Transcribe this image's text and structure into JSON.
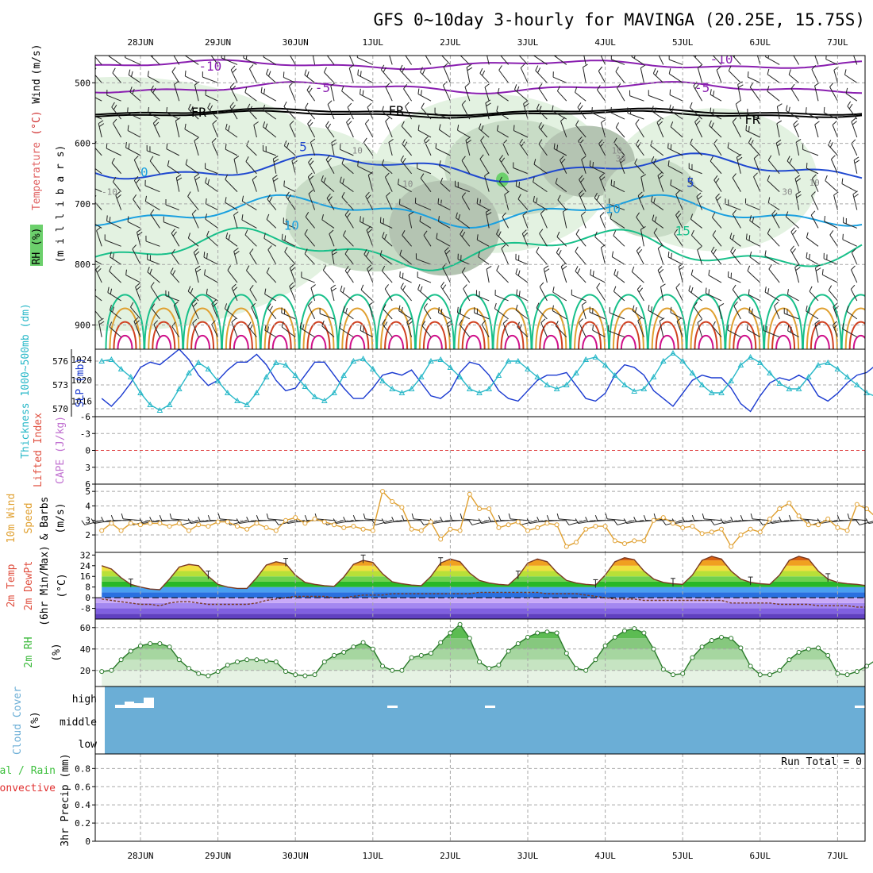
{
  "title": "GFS 0~10day 3-hourly for MAVINGA (20.25E, 15.75S)",
  "days": [
    "28JUN",
    "29JUN",
    "30JUN",
    "1JUL",
    "2JUL",
    "3JUL",
    "4JUL",
    "5JUL",
    "6JUL",
    "7JUL"
  ],
  "colors": {
    "purple": "#8a1fb0",
    "blue": "#1f48d0",
    "lightblue": "#1aa0e0",
    "teal": "#18c08a",
    "orange": "#e0a030",
    "red": "#d04020",
    "magenta": "#d0108a",
    "cyan": "#28b8c8",
    "dkblue": "#1a3ad0",
    "cloud": "#6baed6",
    "precipGreen": "#3cbf3c"
  },
  "chart_data": [
    {
      "id": "upper-air",
      "type": "contour",
      "ylabel_parts": [
        "RH (%)",
        "Temperature",
        "(°C)",
        "Wind",
        "(m/s)"
      ],
      "ylabel_mb": "(m i l l i b a r s)",
      "yticks": [
        500,
        600,
        700,
        800,
        900
      ],
      "ylim": [
        940,
        455
      ],
      "contour_labels": [
        {
          "text": "-10",
          "day": 0.9,
          "p": 480,
          "color": "purple"
        },
        {
          "text": "-10",
          "day": 7.5,
          "p": 468,
          "color": "purple"
        },
        {
          "text": "-5",
          "day": 2.35,
          "p": 515,
          "color": "purple"
        },
        {
          "text": "-5",
          "day": 7.25,
          "p": 515,
          "color": "purple"
        },
        {
          "text": "FR",
          "day": 0.75,
          "p": 556,
          "color": "black"
        },
        {
          "text": "FR",
          "day": 3.3,
          "p": 553,
          "color": "black"
        },
        {
          "text": "FR",
          "day": 7.9,
          "p": 568,
          "color": "black"
        },
        {
          "text": "5",
          "day": 2.1,
          "p": 613,
          "color": "blue"
        },
        {
          "text": "5",
          "day": 7.1,
          "p": 672,
          "color": "blue"
        },
        {
          "text": "0",
          "day": 0.05,
          "p": 655,
          "color": "lightblue"
        },
        {
          "text": "10",
          "day": 1.95,
          "p": 743,
          "color": "lightblue"
        },
        {
          "text": "10",
          "day": 6.1,
          "p": 715,
          "color": "lightblue"
        },
        {
          "text": "15",
          "day": 7.0,
          "p": 752,
          "color": "teal"
        },
        {
          "text": "10",
          "day": 3.45,
          "p": 672,
          "color": "gray"
        },
        {
          "text": "10",
          "day": 2.8,
          "p": 617,
          "color": "gray"
        },
        {
          "text": "10",
          "day": 6.15,
          "p": 617,
          "color": "gray"
        },
        {
          "text": "30",
          "day": 6.2,
          "p": 630,
          "color": "gray"
        },
        {
          "text": "10",
          "day": 8.7,
          "p": 670,
          "color": "gray"
        },
        {
          "text": "30",
          "day": 8.35,
          "p": 685,
          "color": "gray"
        },
        {
          "text": "-10",
          "day": -0.4,
          "p": 685,
          "color": "gray"
        }
      ]
    },
    {
      "id": "thickness-slp",
      "type": "line",
      "ylabel_left": "Thickness 1000~500mb (dm)",
      "ylabel_right": "SLP (mb)",
      "yticks_left": [
        570,
        573,
        576
      ],
      "yticks_right": [
        1016,
        1020,
        1024
      ],
      "ylim_left": [
        569,
        577.5
      ],
      "series": [
        {
          "name": "1000-500mb Thickness (dm)",
          "color": "cyan",
          "values": [
            576.0,
            576.2,
            575.0,
            574.0,
            572.0,
            570.5,
            569.8,
            570.5,
            572.5,
            574.5,
            575.8,
            575.0,
            573.5,
            572.0,
            571.0,
            570.5,
            572.0,
            574.0,
            575.8,
            575.5,
            574.2,
            572.8,
            571.5,
            571.0,
            572.0,
            574.2,
            576.0,
            576.3,
            575.0,
            573.5,
            572.5,
            572.0,
            572.5,
            574.0,
            576.0,
            576.2,
            575.2,
            574.0,
            572.5,
            572.0,
            572.5,
            574.2,
            576.0,
            576.0,
            575.0,
            574.0,
            573.0,
            572.5,
            573.0,
            574.5,
            576.2,
            576.5,
            575.5,
            574.2,
            573.0,
            572.2,
            572.5,
            574.0,
            576.0,
            577.0,
            576.0,
            574.5,
            573.0,
            572.0,
            572.0,
            573.5,
            575.5,
            576.5,
            575.8,
            574.5,
            573.2,
            572.5,
            572.5,
            574.0,
            575.5,
            575.8,
            575.0,
            574.0,
            573.0,
            572.0,
            571.5
          ]
        },
        {
          "name": "SLP (mb)",
          "color": "dkblue",
          "values": [
            1016.5,
            1015.0,
            1017.0,
            1019.5,
            1022.5,
            1023.5,
            1023.0,
            1024.5,
            1026.0,
            1024.0,
            1021.0,
            1019.0,
            1020.0,
            1022.0,
            1023.5,
            1023.5,
            1025.0,
            1023.0,
            1020.0,
            1018.0,
            1018.5,
            1021.0,
            1023.5,
            1023.5,
            1021.0,
            1018.5,
            1016.5,
            1016.5,
            1018.5,
            1021.0,
            1021.5,
            1021.0,
            1022.0,
            1019.5,
            1017.0,
            1016.5,
            1018.0,
            1021.5,
            1023.5,
            1023.0,
            1021.0,
            1018.0,
            1016.5,
            1016.0,
            1018.0,
            1020.0,
            1021.0,
            1021.0,
            1021.5,
            1019.0,
            1016.5,
            1016.0,
            1017.5,
            1021.0,
            1023.0,
            1022.5,
            1021.0,
            1018.0,
            1016.5,
            1015.0,
            1017.5,
            1020.0,
            1021.0,
            1020.5,
            1020.5,
            1018.5,
            1015.5,
            1014.0,
            1017.0,
            1019.5,
            1020.5,
            1020.0,
            1021.0,
            1020.0,
            1017.0,
            1016.0,
            1017.5,
            1019.5,
            1021.0,
            1021.5,
            1023.0
          ]
        }
      ]
    },
    {
      "id": "li-cape",
      "type": "line",
      "ylabel_left": "Lifted Index",
      "ylabel_right": "CAPE (J/kg)",
      "yticks": [
        "-6",
        "-3",
        "0",
        "3",
        "6"
      ],
      "ylim": [
        -6,
        6
      ],
      "series": [
        {
          "name": "Lifted Index",
          "values": []
        },
        {
          "name": "CAPE",
          "values": []
        }
      ]
    },
    {
      "id": "wind10m",
      "type": "line",
      "ylabel_left": "10m Wind",
      "ylabel_mid": "Speed",
      "ylabel_right": "& Barbs",
      "yunit": "(m/s)",
      "yticks": [
        2,
        3,
        4,
        5
      ],
      "ylim": [
        0.8,
        5.5
      ],
      "series": [
        {
          "name": "10m Wind Speed",
          "color": "orange",
          "values": [
            2.3,
            2.8,
            2.3,
            2.8,
            2.7,
            2.8,
            2.8,
            2.6,
            2.8,
            2.3,
            2.7,
            2.6,
            2.9,
            2.9,
            2.6,
            2.4,
            2.8,
            2.5,
            2.3,
            3.0,
            3.2,
            2.8,
            3.1,
            2.9,
            2.7,
            2.5,
            2.6,
            2.4,
            2.3,
            5.0,
            4.3,
            3.9,
            2.4,
            2.3,
            2.9,
            1.7,
            2.4,
            2.3,
            4.8,
            3.8,
            3.8,
            2.5,
            2.7,
            2.9,
            2.3,
            2.5,
            2.8,
            2.7,
            1.2,
            1.5,
            2.4,
            2.6,
            2.6,
            1.6,
            1.4,
            1.6,
            1.6,
            3.0,
            3.2,
            2.8,
            2.5,
            2.6,
            2.1,
            2.2,
            2.4,
            1.2,
            2.0,
            2.4,
            2.2,
            3.1,
            3.8,
            4.2,
            3.3,
            2.7,
            2.7,
            3.1,
            2.5,
            2.3,
            4.1,
            3.8,
            3.2,
            2.4,
            2.4,
            3.1
          ]
        }
      ]
    },
    {
      "id": "temp2m",
      "type": "area",
      "ylabel_left": "2m Temp",
      "ylabel_mid": "2m DewPt",
      "ylabel_right": "(6hr Min/Max)",
      "yunit": "(°C)",
      "yticks": [
        -8,
        0,
        8,
        16,
        24,
        32
      ],
      "ylim": [
        -16,
        34
      ],
      "series": [
        {
          "name": "2m Temp",
          "values": [
            24.0,
            21.5,
            15.0,
            10.0,
            8.0,
            6.5,
            6.0,
            14.0,
            23.0,
            25.0,
            24.0,
            16.0,
            10.0,
            8.0,
            7.0,
            7.0,
            15.0,
            24.5,
            27.0,
            25.5,
            17.0,
            11.5,
            10.0,
            9.0,
            8.5,
            15.5,
            25.0,
            28.0,
            26.5,
            18.0,
            12.0,
            10.5,
            9.5,
            9.0,
            16.0,
            26.0,
            29.0,
            27.0,
            18.5,
            13.0,
            11.0,
            10.0,
            9.5,
            16.0,
            26.0,
            29.0,
            27.0,
            19.0,
            13.0,
            11.0,
            10.0,
            9.5,
            17.0,
            27.0,
            30.0,
            28.5,
            20.0,
            14.0,
            11.5,
            10.5,
            10.0,
            17.0,
            28.0,
            31.0,
            29.0,
            20.0,
            14.0,
            11.5,
            10.5,
            10.0,
            17.0,
            28.0,
            31.0,
            29.0,
            20.0,
            14.0,
            11.5,
            10.5,
            10.0,
            9.0,
            8.0
          ]
        },
        {
          "name": "2m DewPt",
          "values": [
            -1,
            -2,
            -3,
            -4,
            -5,
            -5,
            -6,
            -4,
            -3,
            -3,
            -4,
            -5,
            -5,
            -5,
            -5,
            -5,
            -4,
            -2,
            -1,
            0,
            1,
            1,
            1,
            1,
            0,
            0,
            1,
            2,
            2,
            2,
            3,
            3,
            3,
            3,
            3,
            3,
            3,
            3,
            3,
            4,
            4,
            4,
            4,
            4,
            4,
            4,
            3,
            3,
            3,
            3,
            2,
            1,
            0,
            -1,
            -1,
            -1,
            -2,
            -2,
            -2,
            -2,
            -2,
            -2,
            -2,
            -2,
            -2,
            -4,
            -4,
            -4,
            -4,
            -4,
            -5,
            -5,
            -5,
            -5,
            -6,
            -6,
            -6,
            -6,
            -7,
            -7,
            -7
          ]
        }
      ]
    },
    {
      "id": "rh2m",
      "type": "area",
      "ylabel_left": "2m RH",
      "yunit": "(%)",
      "yticks": [
        20,
        40,
        60
      ],
      "ylim": [
        5,
        68
      ],
      "series": [
        {
          "name": "2m RH",
          "values": [
            19,
            20,
            30,
            38,
            43,
            45,
            45,
            42,
            30,
            22,
            17,
            15,
            19,
            25,
            28,
            30,
            30,
            29,
            28,
            19,
            16,
            15,
            16,
            28,
            34,
            37,
            42,
            46,
            40,
            24,
            20,
            20,
            32,
            34,
            36,
            46,
            55,
            63,
            50,
            28,
            22,
            25,
            38,
            45,
            51,
            55,
            56,
            55,
            36,
            22,
            20,
            30,
            43,
            51,
            57,
            59,
            55,
            40,
            21,
            16,
            17,
            32,
            42,
            48,
            51,
            50,
            41,
            24,
            16,
            16,
            20,
            30,
            37,
            40,
            41,
            34,
            17,
            16,
            19,
            24,
            30
          ]
        }
      ]
    },
    {
      "id": "cloud",
      "type": "bar",
      "ylabel_left": "Cloud Cover",
      "yunit": "(%)",
      "ylevels": [
        "high",
        "middle",
        "low"
      ]
    },
    {
      "id": "precip",
      "type": "bar",
      "ylabel_left": "Total / Rain",
      "ylabel_left2": "Convective",
      "ylabel_right": "3hr Precip (mm)",
      "yticks": [
        "0",
        "0.2",
        "0.4",
        "0.6",
        "0.8"
      ],
      "ylim": [
        0,
        0.96
      ],
      "annotation": "Run Total = 0",
      "values": []
    }
  ]
}
